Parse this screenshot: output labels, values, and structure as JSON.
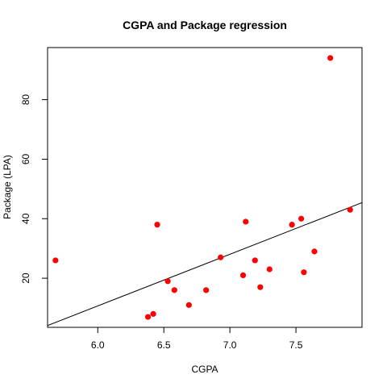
{
  "chart_data": {
    "type": "scatter",
    "title": "CGPA and Package regression",
    "xlabel": "CGPA",
    "ylabel": "Package (LPA)",
    "xlim": [
      5.62,
      8.0
    ],
    "ylim": [
      3.5,
      97.5
    ],
    "xticks": [
      6.0,
      6.5,
      7.0,
      7.5
    ],
    "xtick_labels": [
      "6.0",
      "6.5",
      "7.0",
      "7.5"
    ],
    "yticks": [
      20,
      40,
      60,
      80
    ],
    "ytick_labels": [
      "20",
      "40",
      "60",
      "80"
    ],
    "grid": false,
    "legend": "none",
    "point_color": "#ff0000",
    "line_color": "#000000",
    "points": [
      {
        "x": 5.68,
        "y": 26
      },
      {
        "x": 6.38,
        "y": 7
      },
      {
        "x": 6.42,
        "y": 8
      },
      {
        "x": 6.45,
        "y": 38
      },
      {
        "x": 6.53,
        "y": 19
      },
      {
        "x": 6.58,
        "y": 16
      },
      {
        "x": 6.69,
        "y": 11
      },
      {
        "x": 6.82,
        "y": 16
      },
      {
        "x": 6.93,
        "y": 27
      },
      {
        "x": 7.1,
        "y": 21
      },
      {
        "x": 7.12,
        "y": 39
      },
      {
        "x": 7.19,
        "y": 26
      },
      {
        "x": 7.23,
        "y": 17
      },
      {
        "x": 7.3,
        "y": 23
      },
      {
        "x": 7.47,
        "y": 38
      },
      {
        "x": 7.54,
        "y": 40
      },
      {
        "x": 7.56,
        "y": 22
      },
      {
        "x": 7.64,
        "y": 29
      },
      {
        "x": 7.76,
        "y": 94
      },
      {
        "x": 7.91,
        "y": 43
      }
    ],
    "regression_line": {
      "intercept": -93.4,
      "slope": 17.35
    }
  }
}
